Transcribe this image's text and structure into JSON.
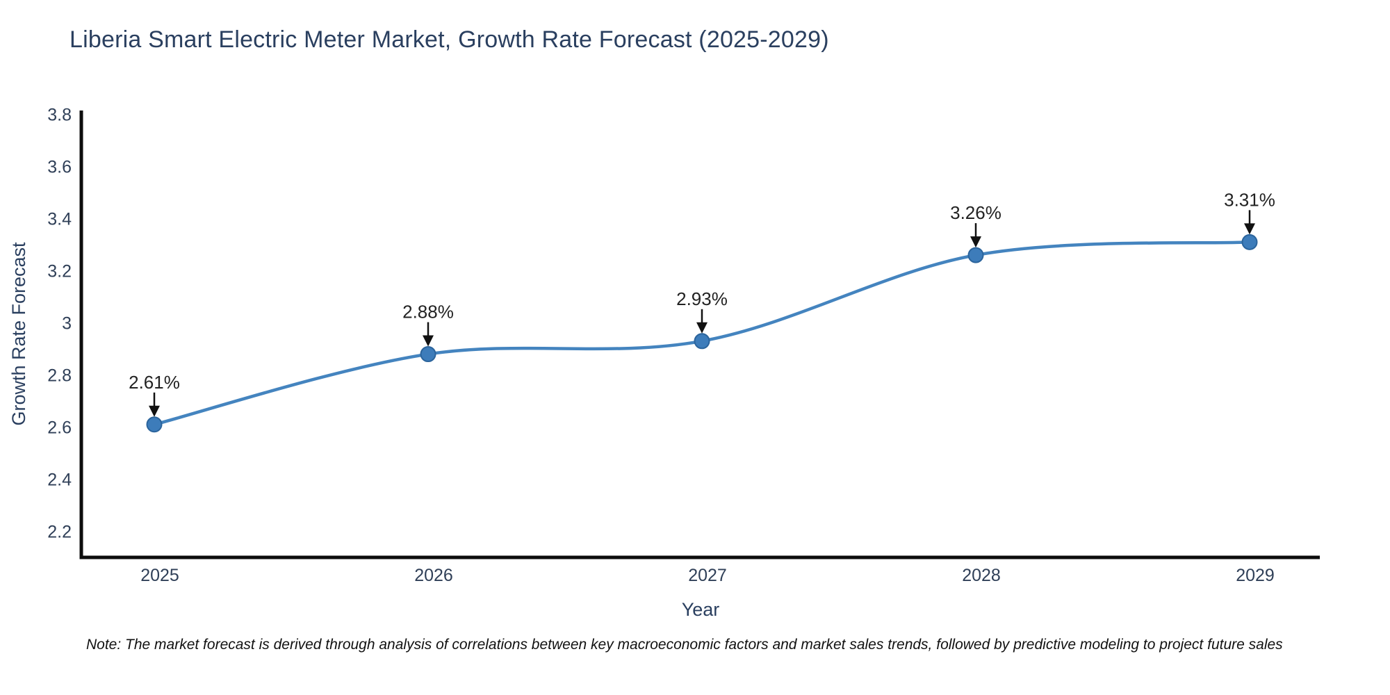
{
  "figure": {
    "note": "Note: The market forecast is derived through analysis of correlations between key macroeconomic factors and market sales trends, followed by predictive modeling to project future sales"
  },
  "colors": {
    "title_text": "#2a3f5f",
    "tick_text": "#2f3f57",
    "axis_line": "#0d0d0d",
    "line": "#4484bf",
    "marker_fill": "#3d7cba",
    "marker_edge": "#2b649c",
    "annotation_text": "#222222",
    "arrow": "#111111",
    "background": "#ffffff"
  },
  "chart_data": {
    "type": "line",
    "title": "Liberia Smart Electric Meter Market, Growth Rate Forecast (2025-2029)",
    "xlabel": "Year",
    "ylabel": "Growth Rate Forecast",
    "x": [
      "2025",
      "2026",
      "2027",
      "2028",
      "2029"
    ],
    "values": [
      2.61,
      2.88,
      2.93,
      3.26,
      3.31
    ],
    "point_labels": [
      "2.61%",
      "2.88%",
      "2.93%",
      "3.26%",
      "3.31%"
    ],
    "ytick_labels": [
      "2.2",
      "2.4",
      "2.6",
      "2.8",
      "3",
      "3.2",
      "3.4",
      "3.6",
      "3.8"
    ],
    "ytick_values": [
      2.2,
      2.4,
      2.6,
      2.8,
      3.0,
      3.2,
      3.4,
      3.6,
      3.8
    ],
    "ylim": [
      2.1,
      3.815
    ],
    "line_shape": "spline",
    "markers": true,
    "grid": false,
    "legend": false,
    "annotations": "percentage value labels with downward black arrows above each data point"
  }
}
